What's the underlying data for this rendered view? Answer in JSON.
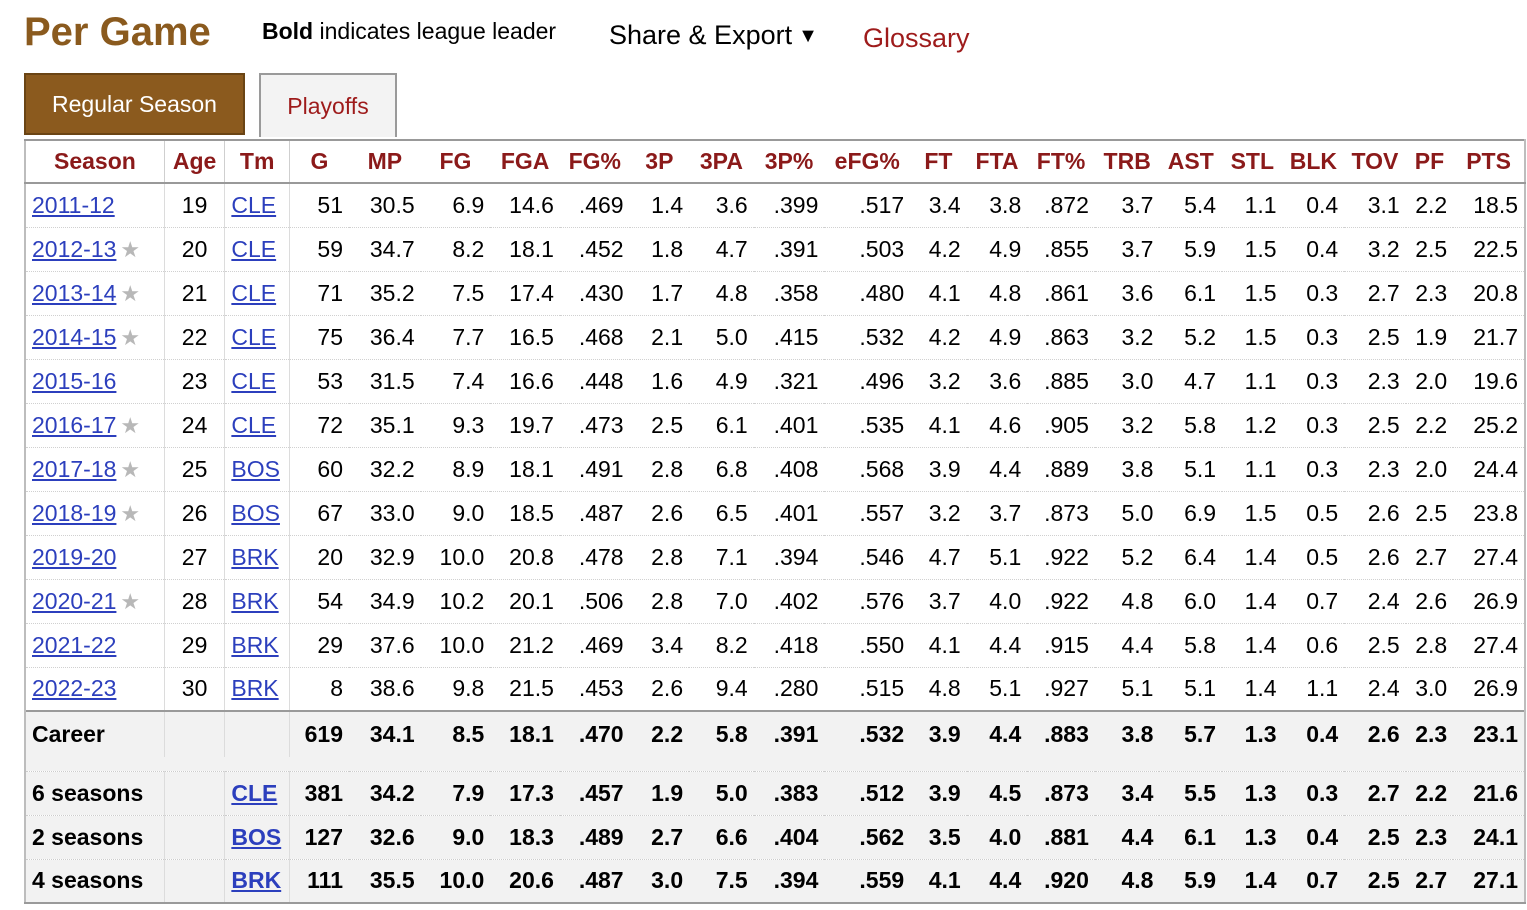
{
  "header": {
    "title": "Per Game",
    "note_bold": "Bold",
    "note_rest": " indicates league leader",
    "share_label": "Share & Export",
    "share_caret": "▼",
    "glossary_label": "Glossary"
  },
  "tabs": [
    {
      "label": "Regular Season",
      "active": true
    },
    {
      "label": "Playoffs",
      "active": false
    }
  ],
  "columns": [
    "Season",
    "Age",
    "Tm",
    "G",
    "MP",
    "FG",
    "FGA",
    "FG%",
    "3P",
    "3PA",
    "3P%",
    "eFG%",
    "FT",
    "FTA",
    "FT%",
    "TRB",
    "AST",
    "STL",
    "BLK",
    "TOV",
    "PF",
    "PTS"
  ],
  "rows": [
    {
      "season": "2011-12",
      "star": false,
      "age": "19",
      "tm": "CLE",
      "g": "51",
      "mp": "30.5",
      "fg": "6.9",
      "fga": "14.6",
      "fg_pct": ".469",
      "p3": "1.4",
      "p3a": "3.6",
      "p3_pct": ".399",
      "efg": ".517",
      "ft": "3.4",
      "fta": "3.8",
      "ft_pct": ".872",
      "trb": "3.7",
      "ast": "5.4",
      "stl": "1.1",
      "blk": "0.4",
      "tov": "3.1",
      "pf": "2.2",
      "pts": "18.5"
    },
    {
      "season": "2012-13",
      "star": true,
      "age": "20",
      "tm": "CLE",
      "g": "59",
      "mp": "34.7",
      "fg": "8.2",
      "fga": "18.1",
      "fg_pct": ".452",
      "p3": "1.8",
      "p3a": "4.7",
      "p3_pct": ".391",
      "efg": ".503",
      "ft": "4.2",
      "fta": "4.9",
      "ft_pct": ".855",
      "trb": "3.7",
      "ast": "5.9",
      "stl": "1.5",
      "blk": "0.4",
      "tov": "3.2",
      "pf": "2.5",
      "pts": "22.5"
    },
    {
      "season": "2013-14",
      "star": true,
      "age": "21",
      "tm": "CLE",
      "g": "71",
      "mp": "35.2",
      "fg": "7.5",
      "fga": "17.4",
      "fg_pct": ".430",
      "p3": "1.7",
      "p3a": "4.8",
      "p3_pct": ".358",
      "efg": ".480",
      "ft": "4.1",
      "fta": "4.8",
      "ft_pct": ".861",
      "trb": "3.6",
      "ast": "6.1",
      "stl": "1.5",
      "blk": "0.3",
      "tov": "2.7",
      "pf": "2.3",
      "pts": "20.8"
    },
    {
      "season": "2014-15",
      "star": true,
      "age": "22",
      "tm": "CLE",
      "g": "75",
      "mp": "36.4",
      "fg": "7.7",
      "fga": "16.5",
      "fg_pct": ".468",
      "p3": "2.1",
      "p3a": "5.0",
      "p3_pct": ".415",
      "efg": ".532",
      "ft": "4.2",
      "fta": "4.9",
      "ft_pct": ".863",
      "trb": "3.2",
      "ast": "5.2",
      "stl": "1.5",
      "blk": "0.3",
      "tov": "2.5",
      "pf": "1.9",
      "pts": "21.7"
    },
    {
      "season": "2015-16",
      "star": false,
      "age": "23",
      "tm": "CLE",
      "g": "53",
      "mp": "31.5",
      "fg": "7.4",
      "fga": "16.6",
      "fg_pct": ".448",
      "p3": "1.6",
      "p3a": "4.9",
      "p3_pct": ".321",
      "efg": ".496",
      "ft": "3.2",
      "fta": "3.6",
      "ft_pct": ".885",
      "trb": "3.0",
      "ast": "4.7",
      "stl": "1.1",
      "blk": "0.3",
      "tov": "2.3",
      "pf": "2.0",
      "pts": "19.6"
    },
    {
      "season": "2016-17",
      "star": true,
      "age": "24",
      "tm": "CLE",
      "g": "72",
      "mp": "35.1",
      "fg": "9.3",
      "fga": "19.7",
      "fg_pct": ".473",
      "p3": "2.5",
      "p3a": "6.1",
      "p3_pct": ".401",
      "efg": ".535",
      "ft": "4.1",
      "fta": "4.6",
      "ft_pct": ".905",
      "trb": "3.2",
      "ast": "5.8",
      "stl": "1.2",
      "blk": "0.3",
      "tov": "2.5",
      "pf": "2.2",
      "pts": "25.2"
    },
    {
      "season": "2017-18",
      "star": true,
      "age": "25",
      "tm": "BOS",
      "g": "60",
      "mp": "32.2",
      "fg": "8.9",
      "fga": "18.1",
      "fg_pct": ".491",
      "p3": "2.8",
      "p3a": "6.8",
      "p3_pct": ".408",
      "efg": ".568",
      "ft": "3.9",
      "fta": "4.4",
      "ft_pct": ".889",
      "trb": "3.8",
      "ast": "5.1",
      "stl": "1.1",
      "blk": "0.3",
      "tov": "2.3",
      "pf": "2.0",
      "pts": "24.4"
    },
    {
      "season": "2018-19",
      "star": true,
      "age": "26",
      "tm": "BOS",
      "g": "67",
      "mp": "33.0",
      "fg": "9.0",
      "fga": "18.5",
      "fg_pct": ".487",
      "p3": "2.6",
      "p3a": "6.5",
      "p3_pct": ".401",
      "efg": ".557",
      "ft": "3.2",
      "fta": "3.7",
      "ft_pct": ".873",
      "trb": "5.0",
      "ast": "6.9",
      "stl": "1.5",
      "blk": "0.5",
      "tov": "2.6",
      "pf": "2.5",
      "pts": "23.8"
    },
    {
      "season": "2019-20",
      "star": false,
      "age": "27",
      "tm": "BRK",
      "g": "20",
      "mp": "32.9",
      "fg": "10.0",
      "fga": "20.8",
      "fg_pct": ".478",
      "p3": "2.8",
      "p3a": "7.1",
      "p3_pct": ".394",
      "efg": ".546",
      "ft": "4.7",
      "fta": "5.1",
      "ft_pct": ".922",
      "trb": "5.2",
      "ast": "6.4",
      "stl": "1.4",
      "blk": "0.5",
      "tov": "2.6",
      "pf": "2.7",
      "pts": "27.4"
    },
    {
      "season": "2020-21",
      "star": true,
      "age": "28",
      "tm": "BRK",
      "g": "54",
      "mp": "34.9",
      "fg": "10.2",
      "fga": "20.1",
      "fg_pct": ".506",
      "p3": "2.8",
      "p3a": "7.0",
      "p3_pct": ".402",
      "efg": ".576",
      "ft": "3.7",
      "fta": "4.0",
      "ft_pct": ".922",
      "trb": "4.8",
      "ast": "6.0",
      "stl": "1.4",
      "blk": "0.7",
      "tov": "2.4",
      "pf": "2.6",
      "pts": "26.9"
    },
    {
      "season": "2021-22",
      "star": false,
      "age": "29",
      "tm": "BRK",
      "g": "29",
      "mp": "37.6",
      "fg": "10.0",
      "fga": "21.2",
      "fg_pct": ".469",
      "p3": "3.4",
      "p3a": "8.2",
      "p3_pct": ".418",
      "efg": ".550",
      "ft": "4.1",
      "fta": "4.4",
      "ft_pct": ".915",
      "trb": "4.4",
      "ast": "5.8",
      "stl": "1.4",
      "blk": "0.6",
      "tov": "2.5",
      "pf": "2.8",
      "pts": "27.4"
    },
    {
      "season": "2022-23",
      "star": false,
      "age": "30",
      "tm": "BRK",
      "g": "8",
      "mp": "38.6",
      "fg": "9.8",
      "fga": "21.5",
      "fg_pct": ".453",
      "p3": "2.6",
      "p3a": "9.4",
      "p3_pct": ".280",
      "efg": ".515",
      "ft": "4.8",
      "fta": "5.1",
      "ft_pct": ".927",
      "trb": "5.1",
      "ast": "5.1",
      "stl": "1.4",
      "blk": "1.1",
      "tov": "2.4",
      "pf": "3.0",
      "pts": "26.9"
    }
  ],
  "career": {
    "label": "Career",
    "g": "619",
    "mp": "34.1",
    "fg": "8.5",
    "fga": "18.1",
    "fg_pct": ".470",
    "p3": "2.2",
    "p3a": "5.8",
    "p3_pct": ".391",
    "efg": ".532",
    "ft": "3.9",
    "fta": "4.4",
    "ft_pct": ".883",
    "trb": "3.8",
    "ast": "5.7",
    "stl": "1.3",
    "blk": "0.4",
    "tov": "2.6",
    "pf": "2.3",
    "pts": "23.1"
  },
  "team_totals": [
    {
      "label": "6 seasons",
      "tm": "CLE",
      "g": "381",
      "mp": "34.2",
      "fg": "7.9",
      "fga": "17.3",
      "fg_pct": ".457",
      "p3": "1.9",
      "p3a": "5.0",
      "p3_pct": ".383",
      "efg": ".512",
      "ft": "3.9",
      "fta": "4.5",
      "ft_pct": ".873",
      "trb": "3.4",
      "ast": "5.5",
      "stl": "1.3",
      "blk": "0.3",
      "tov": "2.7",
      "pf": "2.2",
      "pts": "21.6"
    },
    {
      "label": "2 seasons",
      "tm": "BOS",
      "g": "127",
      "mp": "32.6",
      "fg": "9.0",
      "fga": "18.3",
      "fg_pct": ".489",
      "p3": "2.7",
      "p3a": "6.6",
      "p3_pct": ".404",
      "efg": ".562",
      "ft": "3.5",
      "fta": "4.0",
      "ft_pct": ".881",
      "trb": "4.4",
      "ast": "6.1",
      "stl": "1.3",
      "blk": "0.4",
      "tov": "2.5",
      "pf": "2.3",
      "pts": "24.1"
    },
    {
      "label": "4 seasons",
      "tm": "BRK",
      "g": "111",
      "mp": "35.5",
      "fg": "10.0",
      "fga": "20.6",
      "fg_pct": ".487",
      "p3": "3.0",
      "p3a": "7.5",
      "p3_pct": ".394",
      "efg": ".559",
      "ft": "4.1",
      "fta": "4.4",
      "ft_pct": ".920",
      "trb": "4.8",
      "ast": "5.9",
      "stl": "1.4",
      "blk": "0.7",
      "tov": "2.5",
      "pf": "2.7",
      "pts": "27.1"
    }
  ],
  "star_glyph": "★",
  "colors": {
    "title": "#8a5a1e",
    "tab_active_bg": "#8b5a1e",
    "header_text": "#8b1a1a",
    "link": "#2c3fbd",
    "glossary": "#9e1b1b"
  }
}
